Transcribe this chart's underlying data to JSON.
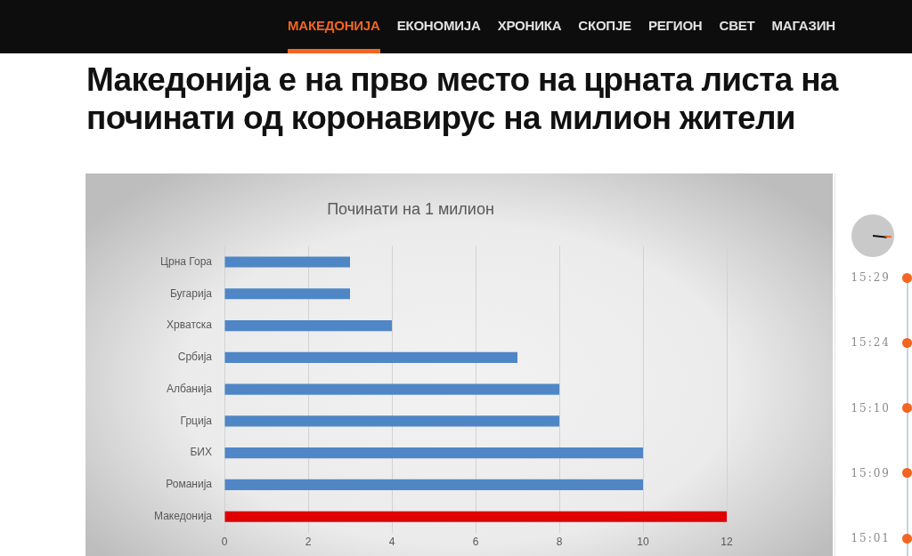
{
  "chart_data": {
    "type": "bar",
    "title": "Македонија е на прво место на црната листа на починати од коронавирус на милион жители",
    "subtitle": "Починати на 1 милион",
    "orientation": "horizontal",
    "categories": [
      "Црна Гора",
      "Бугарија",
      "Хрватска",
      "Србија",
      "Албанија",
      "Грција",
      "БИХ",
      "Романија",
      "Македонија"
    ],
    "values": [
      3,
      3,
      4,
      7,
      8,
      8,
      10,
      10,
      12
    ],
    "colors": [
      "#4f86c6",
      "#4f86c6",
      "#4f86c6",
      "#4f86c6",
      "#4f86c6",
      "#4f86c6",
      "#4f86c6",
      "#4f86c6",
      "#e00000"
    ],
    "xlim": [
      0,
      12
    ],
    "xticks": [
      0,
      2,
      4,
      6,
      8,
      10,
      12
    ],
    "grid": "x",
    "annotations": [
      "МАКЕДОНИЈА",
      "ЕКОНОМИЈА",
      "ХРОНИКА",
      "СКОПЈЕ",
      "РЕГИОН",
      "СВЕТ",
      "МАГАЗИН",
      "15:29",
      "15:24",
      "15:10",
      "15:09",
      "15:01"
    ]
  }
}
